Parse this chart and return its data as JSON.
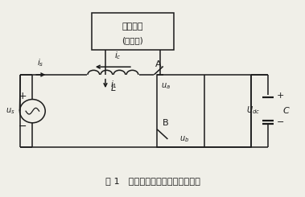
{
  "title": "图 1   单相有源滤波器主电路结构图",
  "box_label_1": "电力机车",
  "box_label_2": "(谐波源)",
  "line_color": "#1a1a1a",
  "bg_color": "#f0efe8",
  "fig_bg": "#f0efe8"
}
